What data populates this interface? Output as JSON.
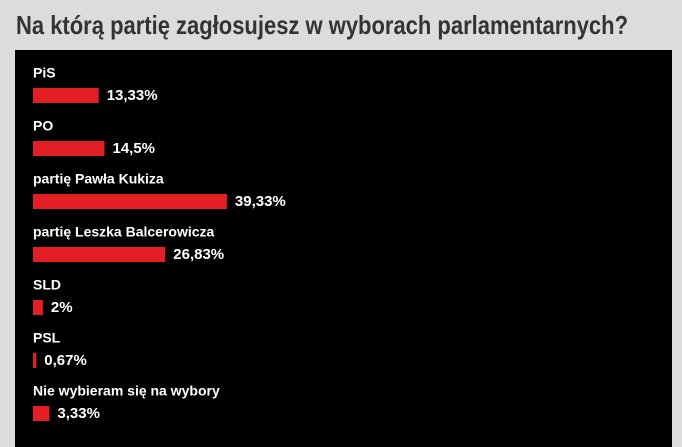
{
  "chart_data": {
    "type": "bar",
    "title": "Na którą partię zagłosujesz w wyborach parlamentarnych?",
    "categories": [
      "PiS",
      "PO",
      "partię Pawła Kukiza",
      "partię Leszka Balcerowicza",
      "SLD",
      "PSL",
      "Nie wybieram się na wybory"
    ],
    "values": [
      13.33,
      14.5,
      39.33,
      26.83,
      2,
      0.67,
      3.33
    ],
    "value_labels": [
      "13,33%",
      "14,5%",
      "39,33%",
      "26,83%",
      "2%",
      "0,67%",
      "3,33%"
    ],
    "color": "#e31e24"
  }
}
